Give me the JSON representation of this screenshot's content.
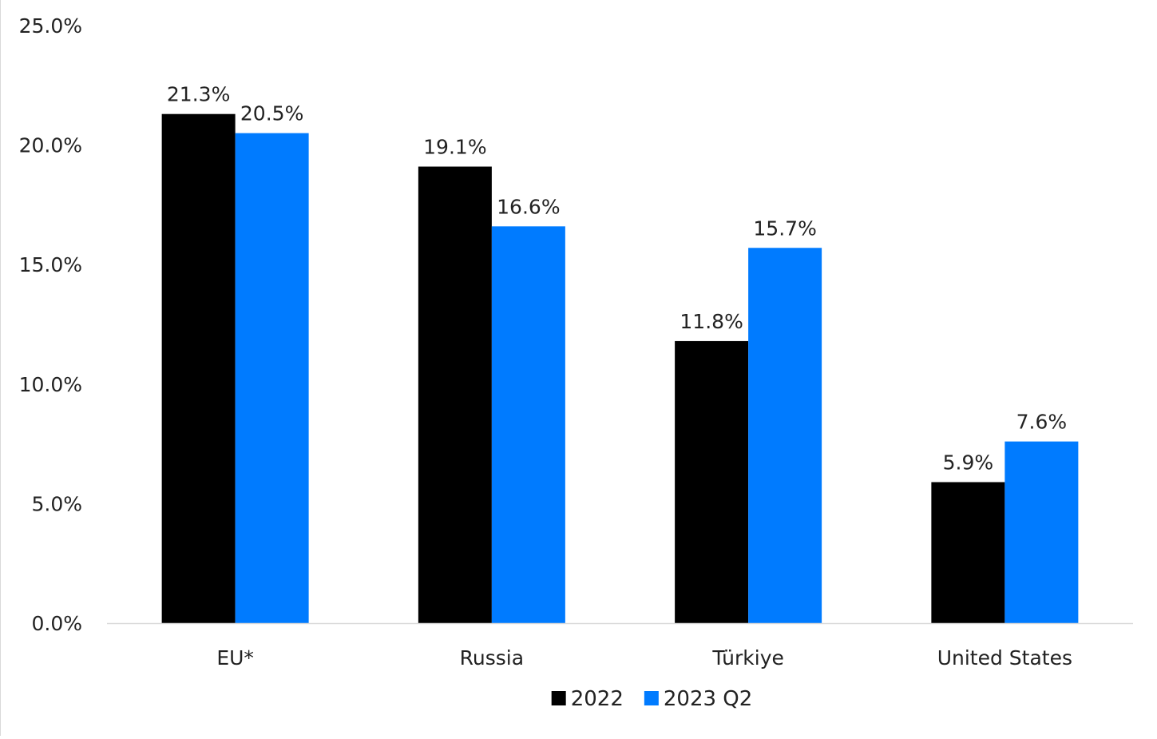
{
  "chart_data": {
    "type": "bar",
    "title": "",
    "xlabel": "",
    "ylabel": "",
    "categories": [
      "EU*",
      "Russia",
      "Türkiye",
      "United States"
    ],
    "series": [
      {
        "name": "2022",
        "values": [
          21.3,
          19.1,
          11.8,
          5.9
        ],
        "labels": [
          "21.3%",
          "19.1%",
          "11.8%",
          "5.9%"
        ],
        "color": "#000000"
      },
      {
        "name": "2023 Q2",
        "values": [
          20.5,
          16.6,
          15.7,
          7.6
        ],
        "labels": [
          "20.5%",
          "16.6%",
          "15.7%",
          "7.6%"
        ],
        "color": "#007bff"
      }
    ],
    "ylim": [
      0,
      25
    ],
    "yticks": [
      0,
      5,
      10,
      15,
      20,
      25
    ],
    "ytick_labels": [
      "0.0%",
      "5.0%",
      "10.0%",
      "15.0%",
      "20.0%",
      "25.0%"
    ],
    "grid": false,
    "legend": "bottom-center",
    "axis_color": "#d9d9d9"
  }
}
